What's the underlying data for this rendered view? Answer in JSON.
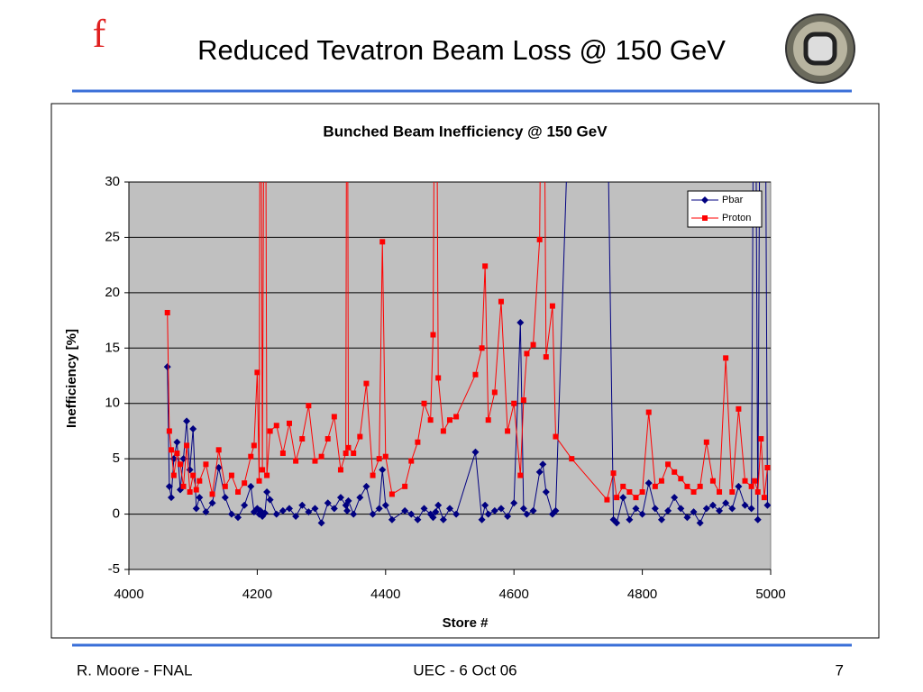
{
  "slide": {
    "title": "Reduced Tevatron Beam Loss @ 150 GeV",
    "logo_letter": "f",
    "footer_left": "R. Moore - FNAL",
    "footer_center": "UEC - 6 Oct 06",
    "footer_right": "7"
  },
  "chart_data": {
    "type": "line",
    "title": "Bunched Beam Inefficiency @ 150 GeV",
    "x_label": "Store #",
    "y_label": "Inefficiency  [%]",
    "x": [
      4060,
      4063,
      4066,
      4070,
      4075,
      4080,
      4085,
      4090,
      4095,
      4100,
      4105,
      4110,
      4120,
      4130,
      4140,
      4150,
      4160,
      4170,
      4180,
      4190,
      4195,
      4200,
      4203,
      4205,
      4208,
      4212,
      4215,
      4220,
      4230,
      4240,
      4250,
      4260,
      4270,
      4280,
      4290,
      4300,
      4310,
      4320,
      4330,
      4338,
      4340,
      4342,
      4350,
      4360,
      4370,
      4380,
      4390,
      4395,
      4400,
      4410,
      4430,
      4440,
      4450,
      4460,
      4470,
      4474,
      4478,
      4482,
      4490,
      4500,
      4510,
      4540,
      4550,
      4555,
      4560,
      4570,
      4580,
      4590,
      4600,
      4610,
      4615,
      4620,
      4630,
      4640,
      4645,
      4650,
      4660,
      4665,
      4690,
      4745,
      4755,
      4760,
      4770,
      4780,
      4790,
      4800,
      4810,
      4820,
      4830,
      4840,
      4850,
      4860,
      4870,
      4880,
      4890,
      4900,
      4910,
      4920,
      4930,
      4940,
      4950,
      4960,
      4970,
      4975,
      4980,
      4985,
      4990,
      4995
    ],
    "series": [
      {
        "name": "Pbar",
        "color": "#000080",
        "marker": "diamond",
        "values": [
          13.3,
          2.5,
          1.5,
          5.0,
          6.5,
          2.2,
          5.0,
          8.4,
          4.0,
          7.7,
          0.5,
          1.5,
          0.2,
          1.0,
          4.2,
          1.5,
          0.0,
          -0.3,
          0.8,
          2.5,
          0.2,
          0.5,
          0.0,
          0.3,
          -0.2,
          0.1,
          2.0,
          1.3,
          0.0,
          0.3,
          0.5,
          -0.2,
          0.8,
          0.2,
          0.5,
          -0.8,
          1.0,
          0.5,
          1.5,
          0.8,
          0.3,
          1.2,
          0.0,
          1.5,
          2.5,
          0.0,
          0.5,
          4.0,
          0.8,
          -0.5,
          0.3,
          0.0,
          -0.5,
          0.5,
          0.0,
          -0.3,
          0.2,
          0.8,
          -0.5,
          0.5,
          0.0,
          5.6,
          -0.5,
          0.8,
          0.0,
          0.3,
          0.5,
          -0.2,
          1.0,
          17.3,
          0.5,
          0.0,
          0.3,
          3.8,
          4.5,
          2.0,
          0.0,
          0.3,
          45,
          40,
          -0.5,
          -0.8,
          1.5,
          -0.5,
          0.5,
          0.0,
          2.8,
          0.5,
          -0.5,
          0.3,
          1.5,
          0.5,
          -0.3,
          0.2,
          -0.8,
          0.5,
          0.8,
          0.3,
          1.0,
          0.5,
          2.5,
          0.8,
          0.5,
          60,
          -0.5,
          60,
          60,
          0.8
        ]
      },
      {
        "name": "Proton",
        "color": "#ff0000",
        "marker": "square",
        "values": [
          18.2,
          7.5,
          5.8,
          3.5,
          5.5,
          4.5,
          2.5,
          6.2,
          2.0,
          3.5,
          2.2,
          3.0,
          4.5,
          1.8,
          5.8,
          2.5,
          3.5,
          2.0,
          2.8,
          5.2,
          6.2,
          12.8,
          3.0,
          60,
          4.0,
          60,
          3.5,
          7.5,
          8.0,
          5.5,
          8.2,
          4.8,
          6.8,
          9.8,
          4.8,
          5.2,
          6.8,
          8.8,
          4.0,
          5.5,
          60,
          6.0,
          5.5,
          7.0,
          11.8,
          3.5,
          5.0,
          24.6,
          5.2,
          1.8,
          2.5,
          4.8,
          6.5,
          10.0,
          8.5,
          16.2,
          60,
          12.3,
          7.5,
          8.5,
          8.8,
          12.6,
          15.0,
          22.4,
          8.5,
          11.0,
          19.2,
          7.5,
          10.0,
          3.5,
          10.3,
          14.5,
          15.3,
          24.8,
          60,
          14.2,
          18.8,
          7.0,
          5.0,
          1.3,
          3.7,
          1.5,
          2.5,
          2.0,
          1.5,
          2.0,
          9.2,
          2.5,
          3.0,
          4.5,
          3.8,
          3.2,
          2.5,
          2.0,
          2.5,
          6.5,
          3.0,
          2.0,
          14.1,
          2.0,
          9.5,
          3.0,
          2.5,
          3.0,
          2.0,
          6.8,
          1.5,
          4.2
        ]
      }
    ],
    "xlim": [
      4000,
      5000
    ],
    "xticks": [
      4000,
      4200,
      4400,
      4600,
      4800,
      5000
    ],
    "ylim": [
      -5,
      30
    ],
    "yticks": [
      -5,
      0,
      5,
      10,
      15,
      20,
      25,
      30
    ],
    "grid": true,
    "legend": "top-right",
    "plot_background": "#c0c0c0"
  }
}
